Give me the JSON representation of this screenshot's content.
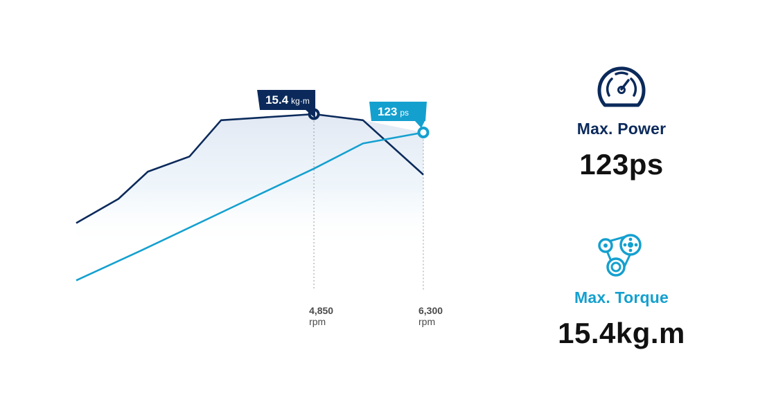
{
  "colors": {
    "torque": "#0b2a5b",
    "power": "#14a0cf",
    "guide": "#9a9a9a",
    "text": "#111111"
  },
  "specs": {
    "power": {
      "icon": "speedometer-icon",
      "label": "Max. Power",
      "value": "123ps"
    },
    "torque": {
      "icon": "belt-pulley-icon",
      "label": "Max. Torque",
      "value": "15.4kg.m"
    }
  },
  "chart_data": {
    "type": "line",
    "title": "",
    "xlabel": "",
    "ylabel": "",
    "grid": false,
    "x_ticks": [
      {
        "value": "4,850",
        "unit": "rpm"
      },
      {
        "value": "6,300",
        "unit": "rpm"
      }
    ],
    "x_range_rpm": [
      1700,
      6300
    ],
    "series": [
      {
        "key": "torque",
        "unit": "kg·m",
        "y_range": [
          9.8,
          16.2
        ],
        "points": [
          [
            1700,
            11.8
          ],
          [
            2260,
            12.6
          ],
          [
            2650,
            13.5
          ],
          [
            3200,
            14.0
          ],
          [
            3620,
            15.2
          ],
          [
            4850,
            15.4
          ],
          [
            5500,
            15.2
          ],
          [
            6300,
            13.4
          ]
        ],
        "peak": {
          "rpm": 4850,
          "value": "15.4",
          "unit": "kg·m"
        }
      },
      {
        "key": "power",
        "unit": "ps",
        "y_range": [
          27,
          150
        ],
        "points": [
          [
            1700,
            29
          ],
          [
            2560,
            48
          ],
          [
            3790,
            76
          ],
          [
            4850,
            100
          ],
          [
            5500,
            116
          ],
          [
            6300,
            123
          ]
        ],
        "peak": {
          "rpm": 6300,
          "value": "123",
          "unit": "ps"
        }
      }
    ]
  }
}
